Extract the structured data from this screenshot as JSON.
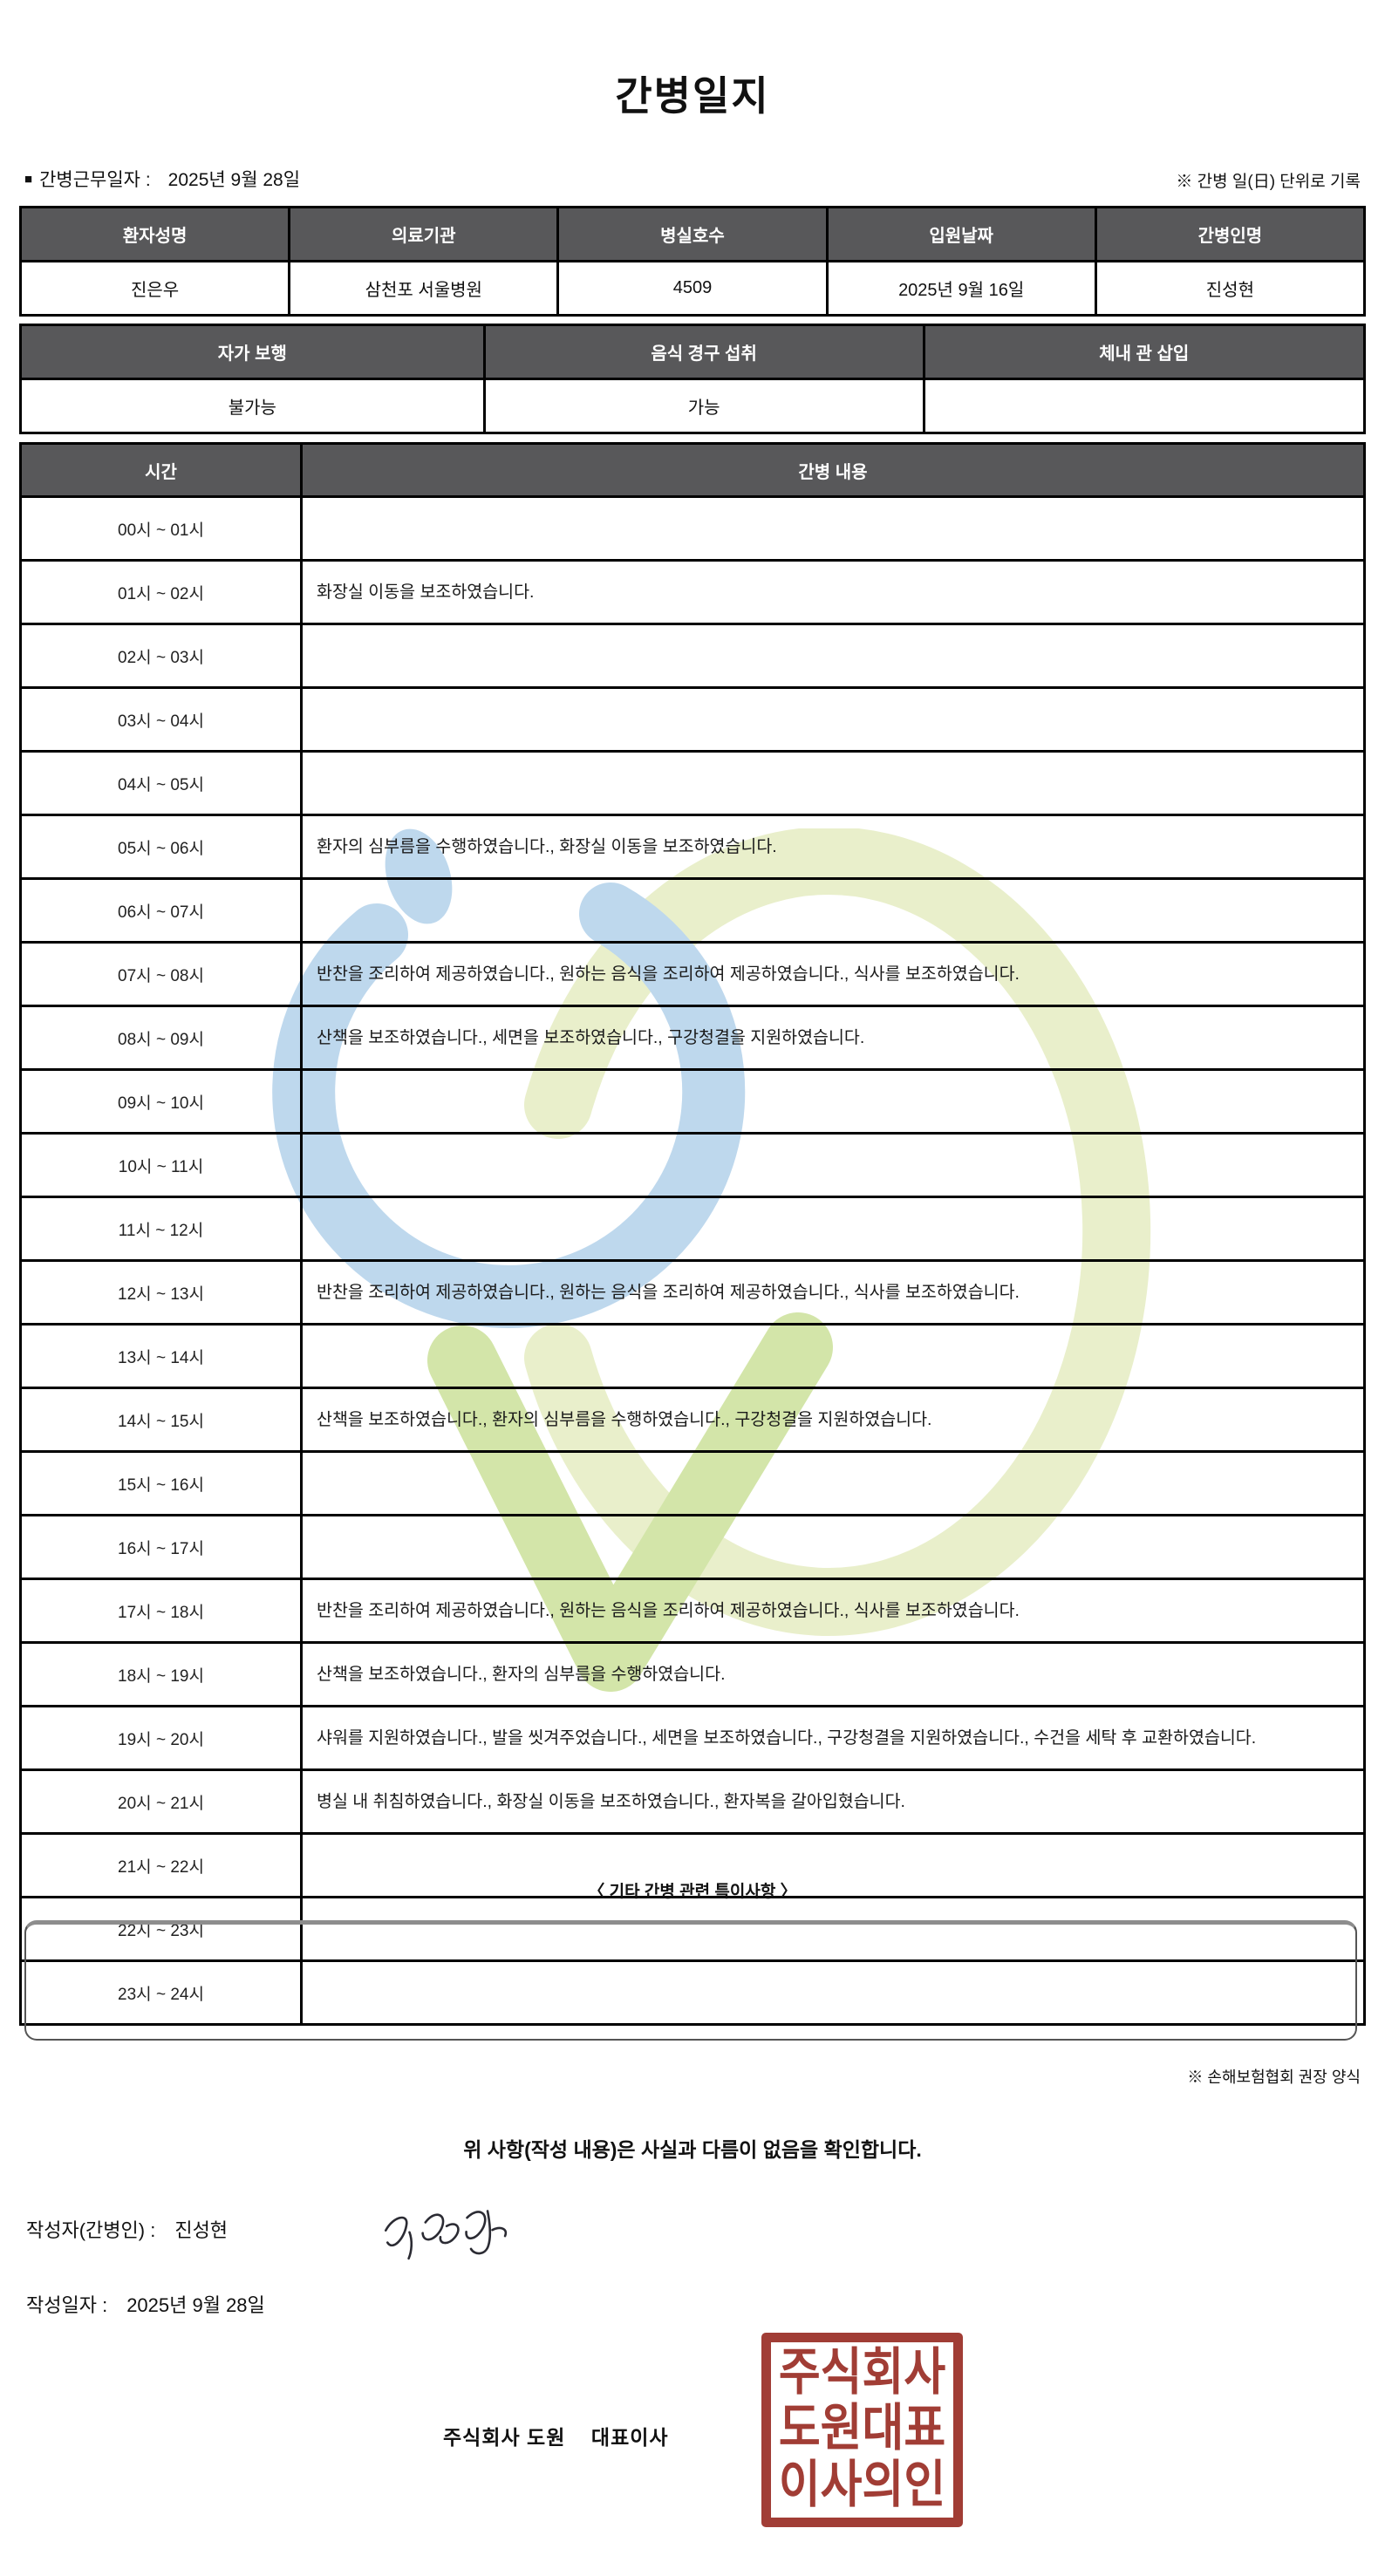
{
  "title": "간병일지",
  "meta": {
    "bullet": "■",
    "work_date_label": "간병근무일자  :",
    "work_date": "2025년 9월 28일",
    "unit_note": "※ 간병 일(日) 단위로 기록"
  },
  "info_table": {
    "headers": [
      "환자성명",
      "의료기관",
      "병실호수",
      "입원날짜",
      "간병인명"
    ],
    "values": [
      "진은우",
      "삼천포 서울병원",
      "4509",
      "2025년 9월 16일",
      "진성현"
    ]
  },
  "status_table": {
    "headers": [
      "자가 보행",
      "음식 경구 섭취",
      "체내 관 삽입"
    ],
    "values": [
      "불가능",
      "가능",
      ""
    ]
  },
  "log_table": {
    "time_header": "시간",
    "content_header": "간병 내용",
    "rows": [
      {
        "time": "00시 ~ 01시",
        "content": ""
      },
      {
        "time": "01시 ~ 02시",
        "content": "화장실 이동을 보조하였습니다."
      },
      {
        "time": "02시 ~ 03시",
        "content": ""
      },
      {
        "time": "03시 ~ 04시",
        "content": ""
      },
      {
        "time": "04시 ~ 05시",
        "content": ""
      },
      {
        "time": "05시 ~ 06시",
        "content": "환자의 심부름을 수행하였습니다., 화장실 이동을 보조하였습니다."
      },
      {
        "time": "06시 ~ 07시",
        "content": ""
      },
      {
        "time": "07시 ~ 08시",
        "content": "반찬을 조리하여 제공하였습니다., 원하는 음식을 조리하여 제공하였습니다., 식사를 보조하였습니다."
      },
      {
        "time": "08시 ~ 09시",
        "content": "산책을 보조하였습니다., 세면을 보조하였습니다., 구강청결을 지원하였습니다."
      },
      {
        "time": "09시 ~ 10시",
        "content": ""
      },
      {
        "time": "10시 ~ 11시",
        "content": ""
      },
      {
        "time": "11시 ~ 12시",
        "content": ""
      },
      {
        "time": "12시 ~ 13시",
        "content": "반찬을 조리하여 제공하였습니다., 원하는 음식을 조리하여 제공하였습니다., 식사를 보조하였습니다."
      },
      {
        "time": "13시 ~ 14시",
        "content": ""
      },
      {
        "time": "14시 ~ 15시",
        "content": "산책을 보조하였습니다., 환자의 심부름을 수행하였습니다., 구강청결을 지원하였습니다."
      },
      {
        "time": "15시 ~ 16시",
        "content": ""
      },
      {
        "time": "16시 ~ 17시",
        "content": ""
      },
      {
        "time": "17시 ~ 18시",
        "content": "반찬을 조리하여 제공하였습니다., 원하는 음식을 조리하여 제공하였습니다., 식사를 보조하였습니다."
      },
      {
        "time": "18시 ~ 19시",
        "content": "산책을 보조하였습니다., 환자의 심부름을 수행하였습니다."
      },
      {
        "time": "19시 ~ 20시",
        "content": "샤워를 지원하였습니다., 발을 씻겨주었습니다., 세면을 보조하였습니다., 구강청결을 지원하였습니다., 수건을 세탁 후 교환하였습니다."
      },
      {
        "time": "20시 ~ 21시",
        "content": "병실 내 취침하였습니다., 화장실 이동을 보조하였습니다., 환자복을 갈아입혔습니다."
      },
      {
        "time": "21시 ~ 22시",
        "content": ""
      },
      {
        "time": "22시 ~ 23시",
        "content": ""
      },
      {
        "time": "23시 ~ 24시",
        "content": ""
      }
    ]
  },
  "notes": {
    "heading": "〈 기타 간병 관련 특이사항 〉",
    "content": "",
    "form_note": "※ 손해보험협회 권장 양식"
  },
  "footer": {
    "confirmation": "위 사항(작성 내용)은 사실과 다름이 없음을 확인합니다.",
    "writer_label": "작성자(간병인) :",
    "writer_name": "진성현",
    "date_label": "작성일자 :",
    "date": "2025년 9월 28일",
    "company_line": "주식회사 도원    대표이사",
    "stamp_lines": [
      "주식회사",
      "도원대표",
      "이사의인"
    ]
  },
  "colors": {
    "header_bg": "#58585a",
    "stamp_red": "#9c332b",
    "watermark_blue": "#b7d4ec",
    "watermark_yellow": "#e7eec6",
    "watermark_green": "#cfe3a0"
  }
}
